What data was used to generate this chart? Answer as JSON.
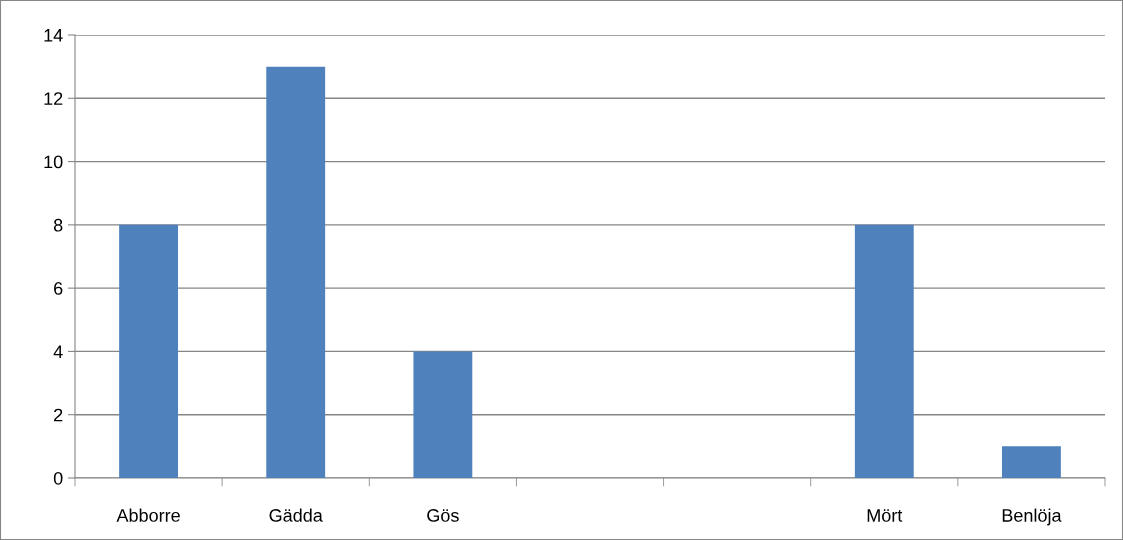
{
  "chart_data": {
    "type": "bar",
    "categories": [
      "Abborre",
      "Gädda",
      "Gös",
      null,
      null,
      "Mört",
      "Benlöja"
    ],
    "values": [
      8,
      13,
      4,
      null,
      null,
      8,
      1
    ],
    "color": "#4f81bd",
    "ylim": [
      0,
      14
    ],
    "yticks": [
      0,
      2,
      4,
      6,
      8,
      10,
      12,
      14
    ],
    "grid": "y",
    "legend": false
  }
}
